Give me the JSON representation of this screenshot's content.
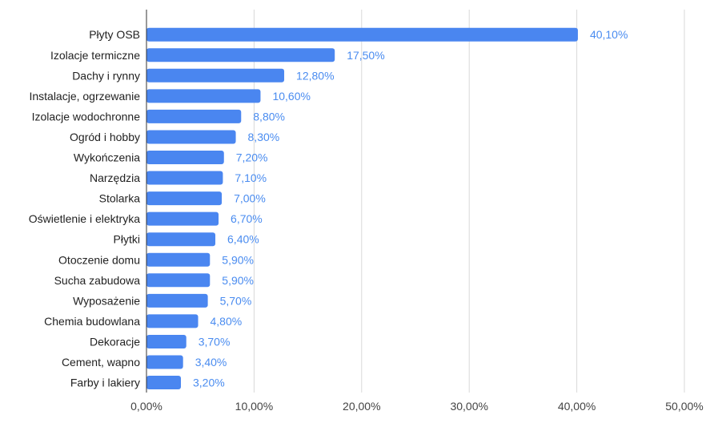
{
  "chart_data": {
    "type": "bar",
    "orientation": "horizontal",
    "title": "",
    "xlabel": "",
    "ylabel": "",
    "categories": [
      "Płyty OSB",
      "Izolacje termiczne",
      "Dachy i rynny",
      "Instalacje, ogrzewanie",
      "Izolacje wodochronne",
      "Ogród i hobby",
      "Wykończenia",
      "Narzędzia",
      "Stolarka",
      "Oświetlenie i elektryka",
      "Płytki",
      "Otoczenie domu",
      "Sucha zabudowa",
      "Wyposażenie",
      "Chemia budowlana",
      "Dekoracje",
      "Cement, wapno",
      "Farby i lakiery"
    ],
    "values": [
      40.1,
      17.5,
      12.8,
      10.6,
      8.8,
      8.3,
      7.2,
      7.1,
      7.0,
      6.7,
      6.4,
      5.9,
      5.9,
      5.7,
      4.8,
      3.7,
      3.4,
      3.2
    ],
    "value_labels": [
      "40,10%",
      "17,50%",
      "12,80%",
      "10,60%",
      "8,80%",
      "8,30%",
      "7,20%",
      "7,10%",
      "7,00%",
      "6,70%",
      "6,40%",
      "5,90%",
      "5,90%",
      "5,70%",
      "4,80%",
      "3,70%",
      "3,40%",
      "3,20%"
    ],
    "xlim": [
      0,
      50
    ],
    "x_ticks": [
      0,
      10,
      20,
      30,
      40,
      50
    ],
    "x_tick_labels": [
      "0,00%",
      "10,00%",
      "20,00%",
      "30,00%",
      "40,00%",
      "50,00%"
    ],
    "grid": true,
    "legend": "none",
    "colors": {
      "bar": "#4a86f0",
      "value_label": "#4a8cf0",
      "grid": "#d9d9d9",
      "axis": "#333333"
    }
  }
}
